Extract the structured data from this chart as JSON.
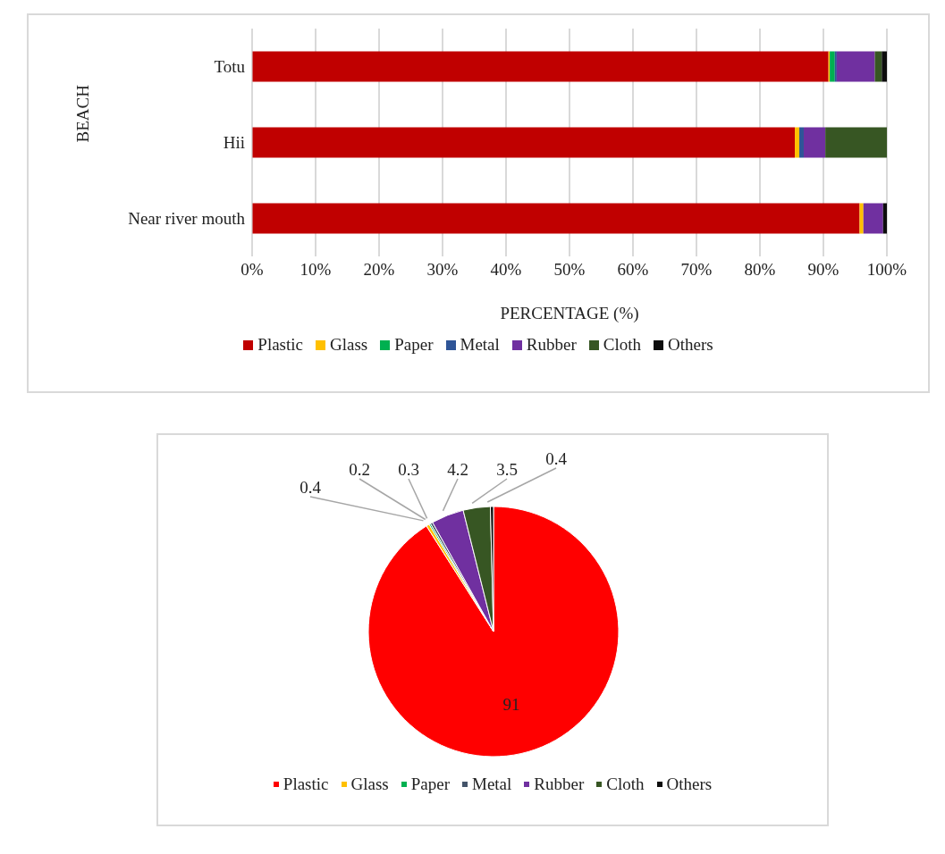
{
  "chart_data": [
    {
      "type": "bar",
      "orientation": "horizontal",
      "stacked": true,
      "xlabel": "PERCENTAGE (%)",
      "ylabel": "BEACH",
      "categories": [
        "Totu",
        "Hii",
        "Near river mouth"
      ],
      "series": [
        {
          "name": "Plastic",
          "color": "#c00000",
          "values": [
            90.8,
            85.5,
            95.7
          ]
        },
        {
          "name": "Glass",
          "color": "#ffc000",
          "values": [
            0.2,
            0.7,
            0.6
          ]
        },
        {
          "name": "Paper",
          "color": "#00b050",
          "values": [
            0.8,
            0,
            0
          ]
        },
        {
          "name": "Metal",
          "color": "#2f5597",
          "values": [
            0.3,
            0.7,
            0
          ]
        },
        {
          "name": "Rubber",
          "color": "#7030a0",
          "values": [
            6.0,
            3.4,
            3.1
          ]
        },
        {
          "name": "Cloth",
          "color": "#375623",
          "values": [
            1.1,
            9.7,
            0
          ]
        },
        {
          "name": "Others",
          "color": "#0d0d0d",
          "values": [
            0.8,
            0,
            0.6
          ]
        }
      ],
      "xlim": [
        0,
        100
      ],
      "xticks": [
        {
          "value": 0,
          "label": "0%"
        },
        {
          "value": 10,
          "label": "10%"
        },
        {
          "value": 20,
          "label": "20%"
        },
        {
          "value": 30,
          "label": "30%"
        },
        {
          "value": 40,
          "label": "40%"
        },
        {
          "value": 50,
          "label": "50%"
        },
        {
          "value": 60,
          "label": "60%"
        },
        {
          "value": 70,
          "label": "70%"
        },
        {
          "value": 80,
          "label": "80%"
        },
        {
          "value": 90,
          "label": "90%"
        },
        {
          "value": 100,
          "label": "100%"
        }
      ],
      "grid": "x",
      "legend": "bottom"
    },
    {
      "type": "pie",
      "categories": [
        "Plastic",
        "Glass",
        "Paper",
        "Metal",
        "Rubber",
        "Cloth",
        "Others"
      ],
      "values": [
        91,
        0.4,
        0.2,
        0.3,
        4.2,
        3.5,
        0.4
      ],
      "colors": [
        "#ff0000",
        "#ffc000",
        "#00b050",
        "#44546a",
        "#7030a0",
        "#375623",
        "#0d0d0d"
      ],
      "data_labels": true,
      "legend": "bottom"
    }
  ]
}
